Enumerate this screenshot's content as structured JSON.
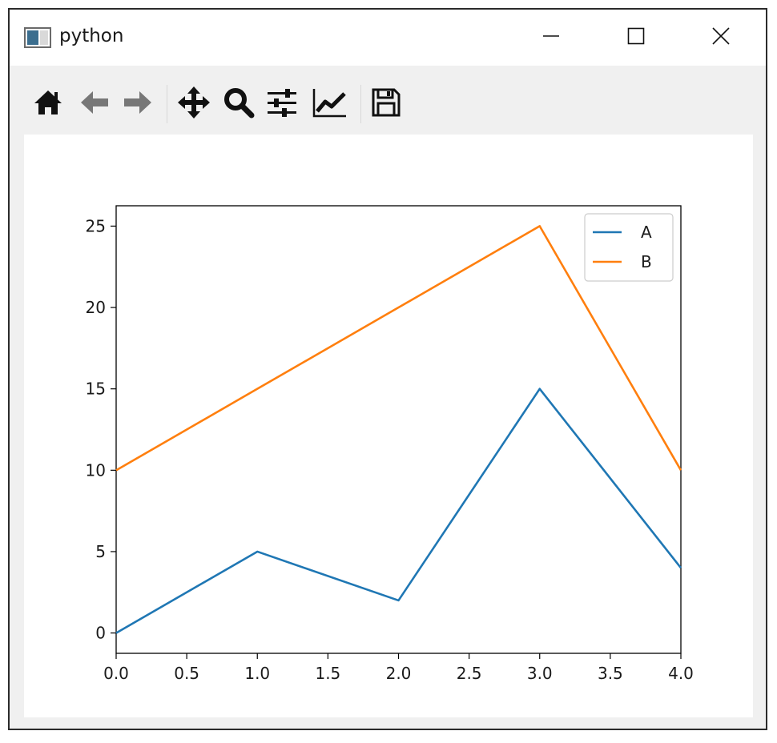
{
  "window": {
    "title": "python",
    "controls": {
      "minimize": "minimize-icon",
      "maximize": "maximize-icon",
      "close": "close-icon"
    }
  },
  "toolbar": {
    "tools": [
      "home-icon",
      "back-arrow-icon",
      "forward-arrow-icon",
      "pan-icon",
      "zoom-icon",
      "configure-subplots-icon",
      "edit-axis-icon",
      "save-icon"
    ]
  },
  "chart_data": {
    "type": "line",
    "x": [
      0,
      1,
      2,
      3,
      4
    ],
    "series": [
      {
        "name": "A",
        "values": [
          0,
          5,
          2,
          15,
          4
        ],
        "color": "#1f77b4"
      },
      {
        "name": "B",
        "values": [
          10,
          15,
          20,
          25,
          10
        ],
        "color": "#ff7f0e"
      }
    ],
    "xlim": [
      0,
      4
    ],
    "ylim": [
      -1.25,
      26.25
    ],
    "xticks": [
      "0.0",
      "0.5",
      "1.0",
      "1.5",
      "2.0",
      "2.5",
      "3.0",
      "3.5",
      "4.0"
    ],
    "yticks": [
      "0",
      "5",
      "10",
      "15",
      "20",
      "25"
    ],
    "grid": false,
    "legend_position": "top-right",
    "title": "",
    "xlabel": "",
    "ylabel": ""
  }
}
